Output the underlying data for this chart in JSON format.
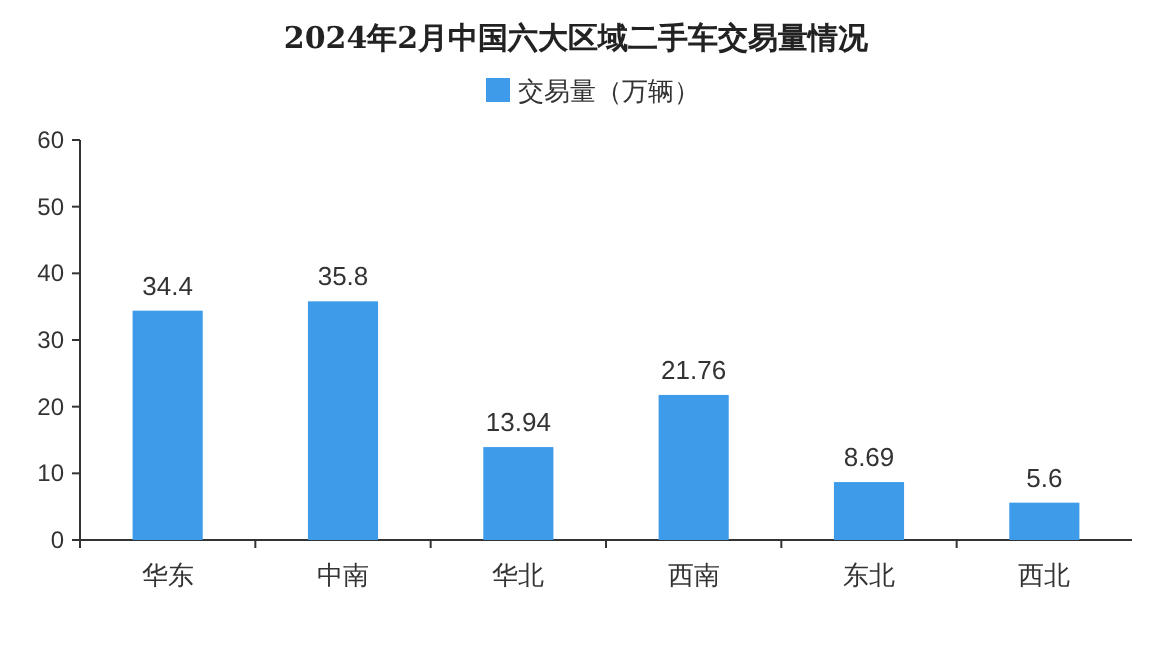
{
  "chart_data": {
    "type": "bar",
    "title": "2024年2月中国六大区域二手车交易量情况",
    "categories": [
      "华东",
      "中南",
      "华北",
      "西南",
      "东北",
      "西北"
    ],
    "series": [
      {
        "name": "交易量（万辆）",
        "color": "#3e9bea",
        "values": [
          34.4,
          35.8,
          13.94,
          21.76,
          8.69,
          5.6
        ]
      }
    ],
    "ylim": [
      0,
      60
    ],
    "yticks": [
      0,
      10,
      20,
      30,
      40,
      50,
      60
    ],
    "data_labels": true,
    "legend": "top"
  }
}
